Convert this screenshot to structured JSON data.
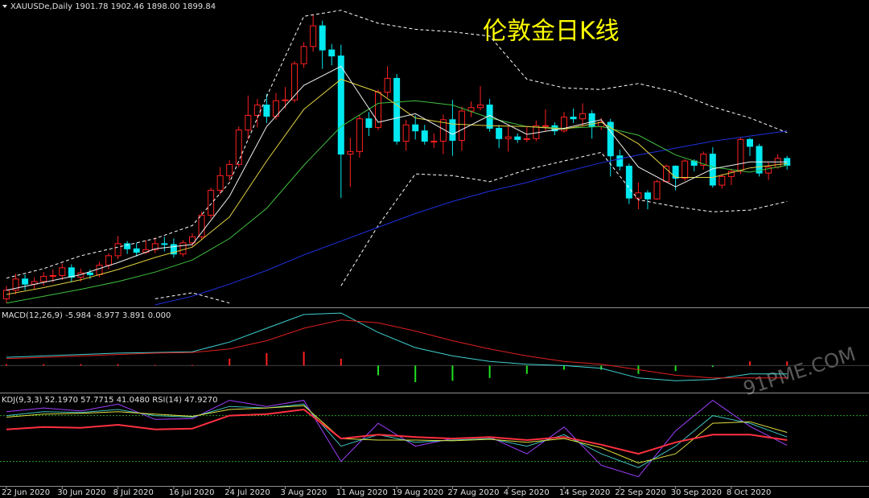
{
  "chart_data": [
    {
      "type": "candlestick",
      "title": "伦敦金日K线",
      "header": "XAUUSDe,Daily  1901.78 1902.46 1898.00 1899.84",
      "categories": [
        "22 Jun 2020",
        null,
        null,
        null,
        null,
        null,
        "30 Jun 2020",
        null,
        null,
        null,
        null,
        null,
        "8 Jul 2020",
        null,
        null,
        null,
        null,
        null,
        "16 Jul 2020",
        null,
        null,
        null,
        null,
        null,
        "24 Jul 2020",
        null,
        null,
        null,
        null,
        null,
        "3 Aug 2020",
        null,
        null,
        null,
        null,
        null,
        "11 Aug 2020",
        null,
        null,
        null,
        null,
        null,
        "19 Aug 2020",
        null,
        null,
        null,
        null,
        null,
        "27 Aug 2020",
        null,
        null,
        null,
        null,
        null,
        "4 Sep 2020",
        null,
        null,
        null,
        null,
        null,
        "14 Sep 2020",
        null,
        null,
        null,
        null,
        null,
        "22 Sep 2020",
        null,
        null,
        null,
        null,
        null,
        "30 Sep 2020",
        null,
        null,
        null,
        null,
        null,
        "8 Oct 2020",
        null,
        null,
        null,
        null,
        null,
        null
      ],
      "open": [
        1745,
        1755,
        1768,
        1762,
        1765,
        1771,
        1772,
        1781,
        1770,
        1775,
        1773,
        1784,
        1795,
        1809,
        1803,
        1799,
        1802,
        1809,
        1808,
        1797,
        1810,
        1817,
        1842,
        1871,
        1888,
        1901,
        1941,
        1958,
        1970,
        1957,
        1975,
        1976,
        2018,
        2038,
        2062,
        2034,
        2027,
        1913,
        1916,
        1954,
        1944,
        1985,
        2001,
        1928,
        1947,
        1940,
        1928,
        1928,
        1953,
        1929,
        1963,
        1967,
        1970,
        1943,
        1931,
        1933,
        1930,
        1931,
        1946,
        1946,
        1940,
        1956,
        1954,
        1960,
        1945,
        1950,
        1911,
        1899,
        1862,
        1868,
        1861,
        1881,
        1899,
        1885,
        1905,
        1900,
        1913,
        1877,
        1887,
        1893,
        1930,
        1922,
        1891,
        1898,
        1908
      ],
      "high": [
        1760,
        1774,
        1773,
        1770,
        1776,
        1779,
        1786,
        1785,
        1780,
        1779,
        1788,
        1798,
        1818,
        1812,
        1810,
        1813,
        1816,
        1817,
        1815,
        1813,
        1821,
        1846,
        1874,
        1898,
        1906,
        1945,
        1981,
        1977,
        1983,
        1984,
        1991,
        2021,
        2043,
        2075,
        2068,
        2041,
        2040,
        1932,
        1958,
        1962,
        1988,
        2015,
        2006,
        1953,
        1958,
        1947,
        1937,
        1959,
        1976,
        1968,
        1974,
        1992,
        1977,
        1947,
        1946,
        1937,
        1945,
        1952,
        1965,
        1950,
        1962,
        1966,
        1972,
        1964,
        1955,
        1954,
        1918,
        1902,
        1880,
        1871,
        1883,
        1901,
        1900,
        1907,
        1907,
        1916,
        1921,
        1890,
        1896,
        1933,
        1932,
        1925,
        1903,
        1913,
        1911
      ],
      "low": [
        1740,
        1750,
        1755,
        1756,
        1760,
        1764,
        1767,
        1764,
        1765,
        1768,
        1770,
        1779,
        1791,
        1797,
        1794,
        1797,
        1798,
        1800,
        1793,
        1794,
        1806,
        1814,
        1838,
        1866,
        1882,
        1898,
        1930,
        1944,
        1949,
        1953,
        1966,
        1973,
        2013,
        2032,
        2012,
        2016,
        1862,
        1875,
        1909,
        1934,
        1941,
        1979,
        1924,
        1917,
        1930,
        1924,
        1920,
        1913,
        1911,
        1917,
        1956,
        1964,
        1939,
        1920,
        1916,
        1926,
        1927,
        1928,
        1940,
        1935,
        1938,
        1949,
        1945,
        1931,
        1941,
        1887,
        1894,
        1855,
        1849,
        1849,
        1860,
        1880,
        1871,
        1882,
        1893,
        1895,
        1874,
        1873,
        1877,
        1890,
        1911,
        1887,
        1883,
        1896,
        1895
      ],
      "close": [
        1755,
        1768,
        1762,
        1765,
        1771,
        1772,
        1781,
        1770,
        1775,
        1773,
        1784,
        1795,
        1809,
        1803,
        1799,
        1802,
        1809,
        1808,
        1797,
        1810,
        1817,
        1842,
        1871,
        1888,
        1901,
        1941,
        1958,
        1970,
        1957,
        1975,
        1976,
        2018,
        2038,
        2062,
        2034,
        2027,
        1913,
        1916,
        1954,
        1944,
        1985,
        2001,
        1928,
        1947,
        1940,
        1928,
        1928,
        1953,
        1929,
        1963,
        1967,
        1970,
        1943,
        1931,
        1933,
        1930,
        1931,
        1946,
        1946,
        1940,
        1956,
        1954,
        1960,
        1945,
        1950,
        1911,
        1899,
        1862,
        1868,
        1861,
        1881,
        1899,
        1885,
        1905,
        1900,
        1913,
        1877,
        1887,
        1893,
        1930,
        1922,
        1891,
        1898,
        1908,
        1900
      ],
      "up_color": "#ff2020",
      "down_color": "#00e8f0",
      "ylim": [
        1736,
        2092
      ],
      "x": [
        0,
        4,
        8,
        12,
        16,
        20,
        24,
        28,
        32,
        36,
        40,
        44,
        48,
        52,
        56,
        60,
        64,
        68,
        72,
        76,
        80,
        84
      ],
      "series": [
        {
          "color": "#ffffff",
          "dashed": true,
          "values": [
            1769,
            1780,
            1795,
            1805,
            1815,
            1830,
            1880,
            1980,
            2073,
            2080,
            2065,
            2058,
            2055,
            2050,
            2000,
            1990,
            1988,
            1995,
            1985,
            1968,
            1955,
            1938
          ]
        },
        {
          "color": "#ffffff",
          "dashed": true,
          "values": [
            null,
            null,
            null,
            null,
            1745,
            1752,
            1740,
            null,
            null,
            1760,
            1830,
            1890,
            1888,
            1881,
            1895,
            1905,
            1915,
            1860,
            1852,
            1846,
            1848,
            1858
          ]
        },
        {
          "color": "#2030e0",
          "values": [
            null,
            null,
            null,
            null,
            1738,
            1748,
            1762,
            1778,
            1796,
            1812,
            1828,
            1844,
            1858,
            1870,
            1880,
            1892,
            1903,
            1912,
            1920,
            1928,
            1934,
            1940
          ]
        },
        {
          "color": "#40c040",
          "values": [
            1740,
            1748,
            1756,
            1765,
            1776,
            1790,
            1815,
            1850,
            1900,
            1945,
            1972,
            1975,
            1970,
            1955,
            1945,
            1943,
            1945,
            1935,
            1912,
            1898,
            1892,
            1900
          ]
        },
        {
          "color": "#e0d040",
          "values": [
            1750,
            1758,
            1767,
            1779,
            1793,
            1805,
            1840,
            1905,
            1965,
            2000,
            1985,
            1955,
            1948,
            1946,
            1945,
            1942,
            1950,
            1925,
            1886,
            1886,
            1897,
            1902
          ]
        },
        {
          "color": "#f0f0f0",
          "values": [
            1755,
            1764,
            1773,
            1787,
            1803,
            1808,
            1864,
            1945,
            1993,
            2015,
            1950,
            1960,
            1936,
            1958,
            1936,
            1943,
            1953,
            1898,
            1875,
            1896,
            1904,
            1904
          ]
        }
      ]
    },
    {
      "type": "line",
      "header": "MACD(12,26,9) -5.984 -8.977 3.891 0.000",
      "ylim": [
        -19,
        41
      ],
      "x": [
        0,
        4,
        8,
        12,
        16,
        20,
        24,
        28,
        32,
        36,
        40,
        44,
        48,
        52,
        56,
        60,
        64,
        68,
        72,
        76,
        80,
        84
      ],
      "bars": {
        "up_color": "#ff2020",
        "down_color": "#20e020",
        "values": [
          1,
          1,
          1,
          1,
          0.5,
          0.5,
          5,
          9,
          10,
          5,
          -7,
          -12,
          -11,
          -9,
          -6,
          -3,
          -3,
          -6,
          -4,
          -1,
          3,
          3
        ]
      },
      "series": [
        {
          "color": "#40d0d0",
          "values": [
            6,
            7,
            8,
            9,
            9.5,
            10,
            17,
            27,
            37,
            38,
            24,
            13,
            7,
            3,
            1,
            0,
            -2,
            -9,
            -11,
            -10,
            -6,
            -6
          ]
        },
        {
          "color": "#e02020",
          "values": [
            5,
            6,
            7,
            8,
            9,
            9.5,
            12,
            18,
            27,
            33,
            31,
            25,
            18,
            12,
            7,
            3,
            1,
            -3,
            -7,
            -9,
            -9,
            -9
          ]
        }
      ],
      "watermark": "91PME.COM"
    },
    {
      "type": "line",
      "header": "KDJ(9,3,3) 52.1970 57.7715 41.0480  RSI(14) 47.9270",
      "ylim": [
        -11,
        108
      ],
      "levels": [
        20,
        80
      ],
      "level_color": "#20a020",
      "x": [
        0,
        4,
        8,
        12,
        16,
        20,
        24,
        28,
        32,
        36,
        40,
        44,
        48,
        52,
        56,
        60,
        64,
        68,
        72,
        76,
        80,
        84
      ],
      "series": [
        {
          "color": "#a040ff",
          "values": [
            85,
            90,
            86,
            95,
            75,
            76,
            100,
            92,
            100,
            20,
            70,
            40,
            50,
            52,
            30,
            65,
            15,
            0,
            60,
            100,
            66,
            41
          ]
        },
        {
          "color": "#40c0c0",
          "values": [
            80,
            85,
            84,
            88,
            80,
            78,
            92,
            90,
            95,
            40,
            55,
            45,
            48,
            50,
            40,
            55,
            30,
            12,
            40,
            80,
            70,
            52
          ]
        },
        {
          "color": "#e0e040",
          "values": [
            78,
            82,
            83,
            85,
            82,
            79,
            88,
            90,
            93,
            50,
            48,
            48,
            47,
            49,
            45,
            50,
            38,
            18,
            30,
            70,
            72,
            58
          ]
        },
        {
          "color": "#ff3040",
          "width": 2,
          "values": [
            62,
            65,
            64,
            68,
            62,
            63,
            80,
            82,
            88,
            50,
            55,
            52,
            50,
            52,
            48,
            52,
            42,
            30,
            45,
            55,
            55,
            48
          ]
        }
      ]
    }
  ]
}
